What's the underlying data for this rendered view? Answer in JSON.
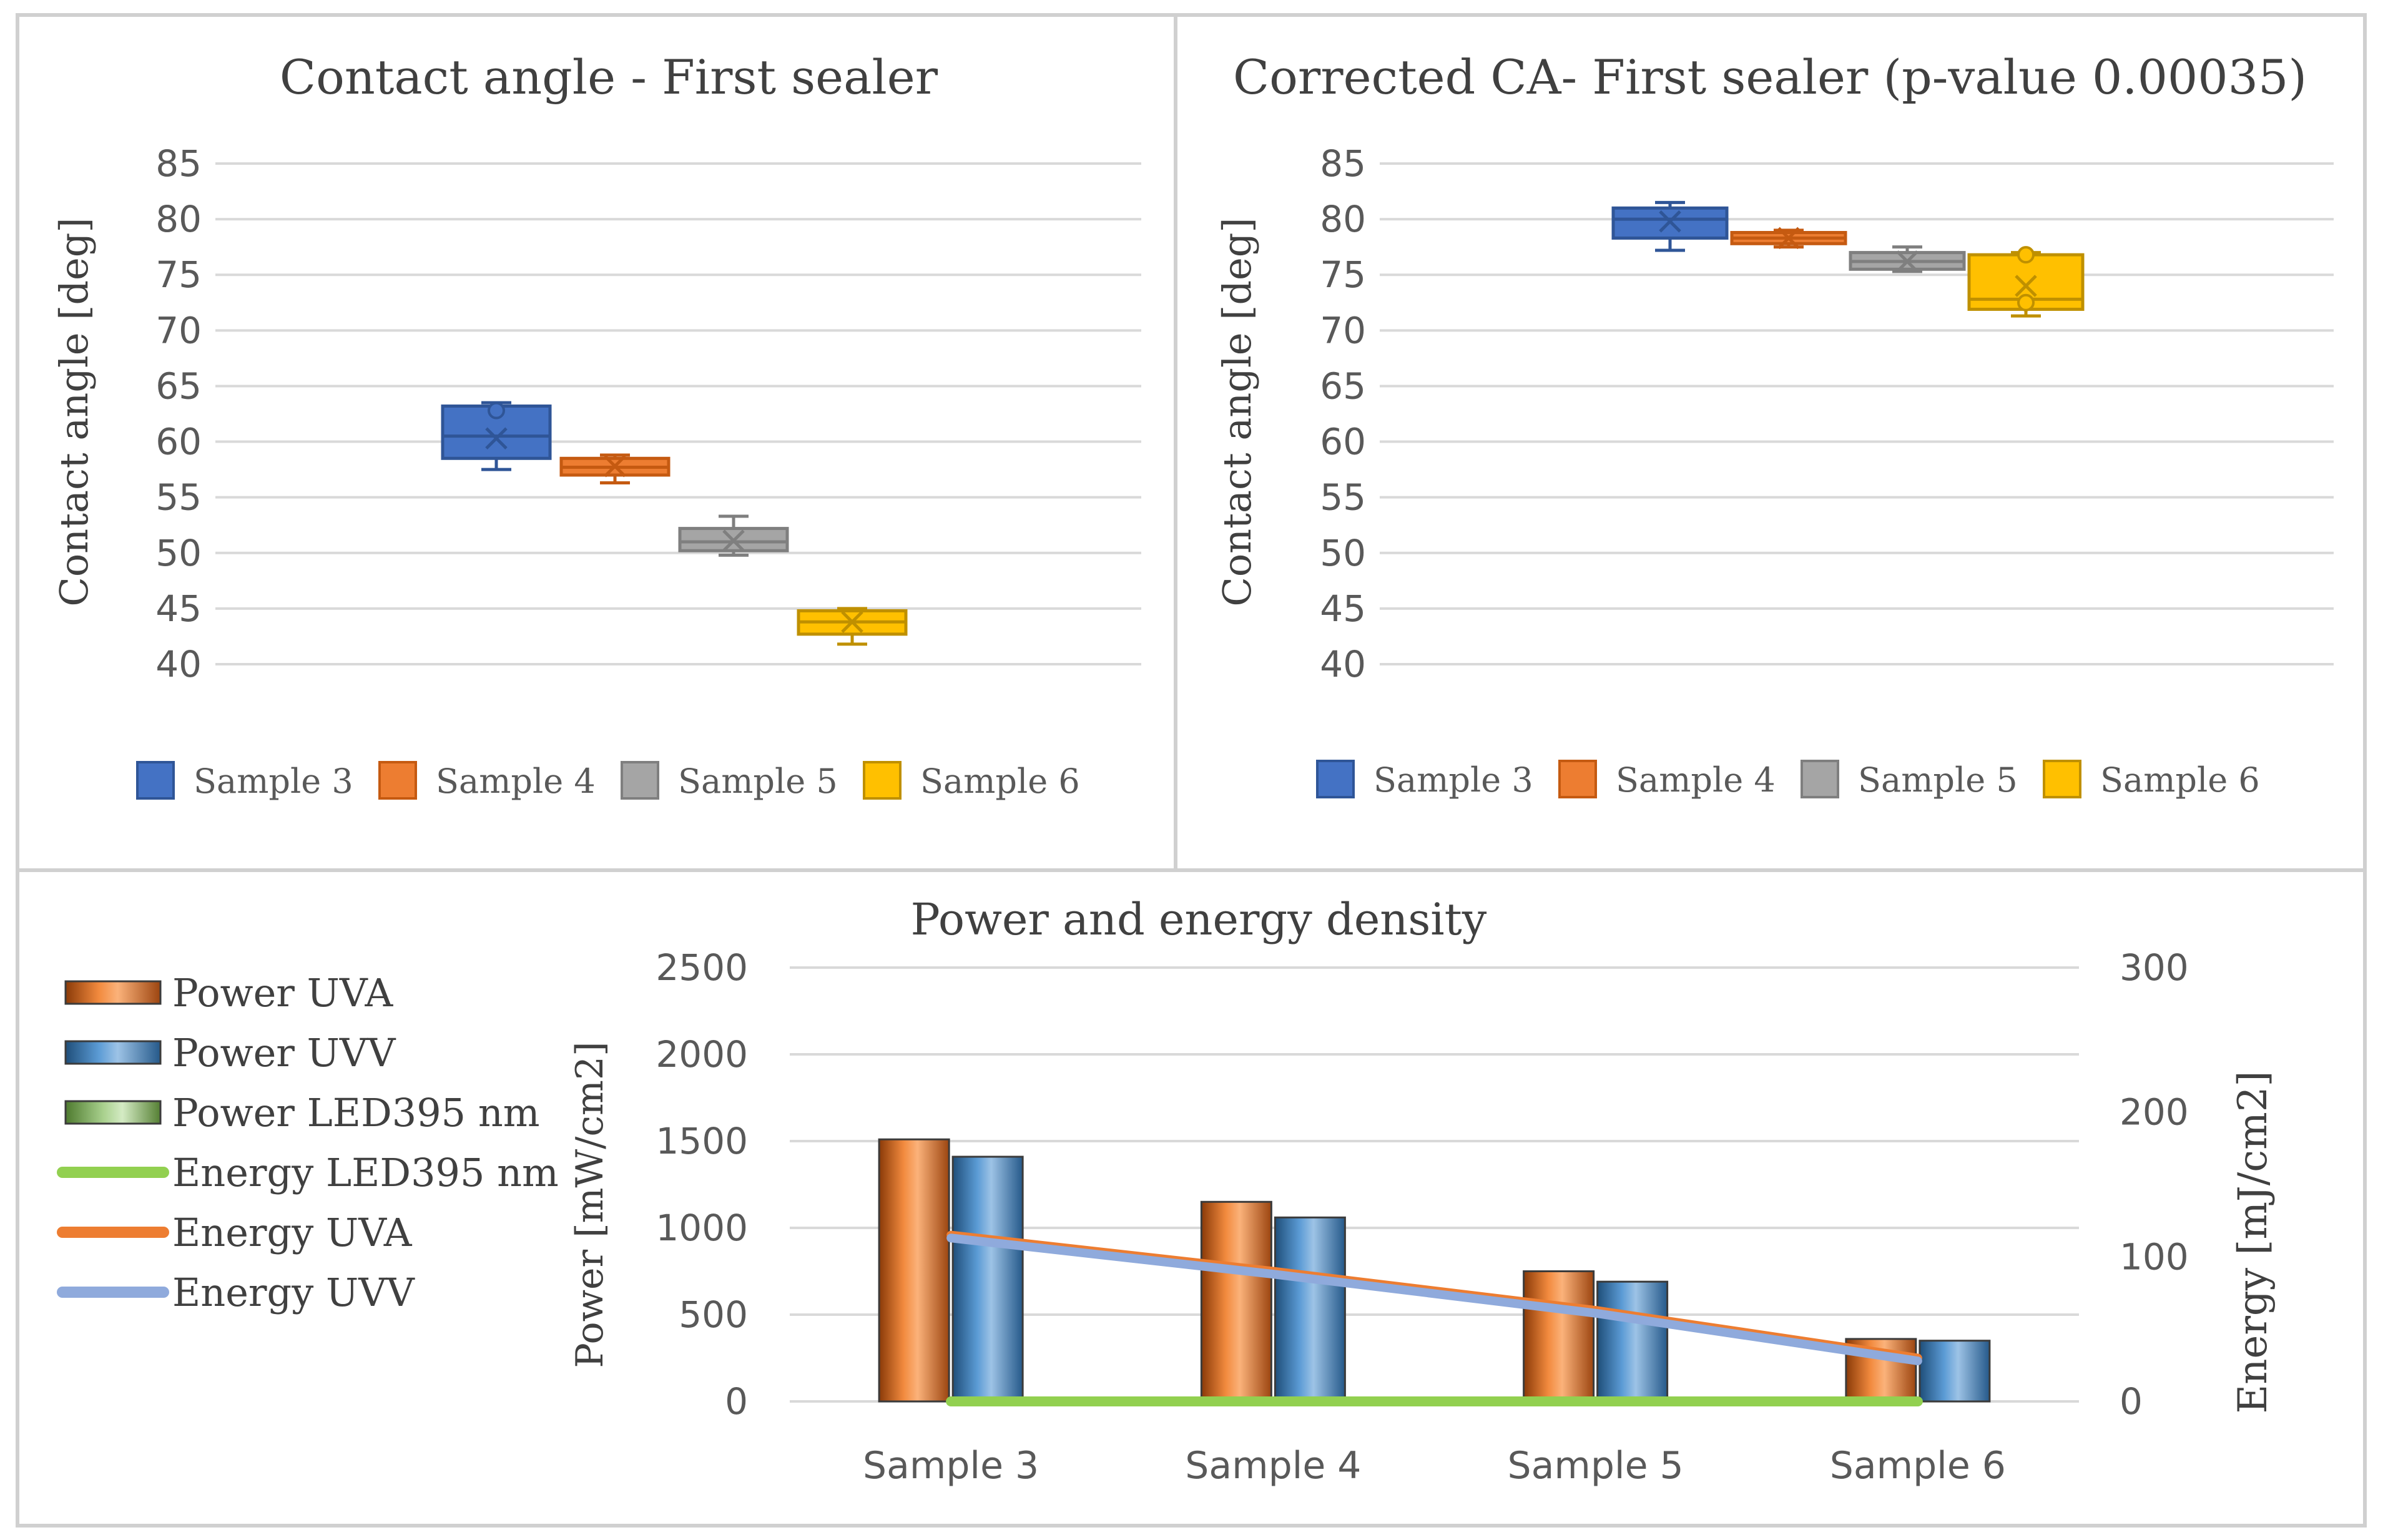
{
  "chart_data": [
    {
      "id": "ca",
      "type": "box",
      "title": "Contact angle - First sealer",
      "ylabel": "Contact angle [deg]",
      "ylim": [
        40,
        85
      ],
      "yticks": [
        40,
        45,
        50,
        55,
        60,
        65,
        70,
        75,
        80,
        85
      ],
      "series": [
        {
          "name": "Sample 3",
          "color": "#4472C4",
          "stroke": "#2F5597",
          "min": 57.5,
          "q1": 58.5,
          "median": 60.5,
          "q3": 63.2,
          "max": 63.5,
          "mean": 60.3,
          "outliers": [
            62.8
          ]
        },
        {
          "name": "Sample 4",
          "color": "#ED7D31",
          "stroke": "#C55A11",
          "min": 56.3,
          "q1": 57.0,
          "median": 57.7,
          "q3": 58.5,
          "max": 58.8,
          "mean": 57.8,
          "outliers": []
        },
        {
          "name": "Sample 5",
          "color": "#A5A5A5",
          "stroke": "#7F7F7F",
          "min": 49.8,
          "q1": 50.2,
          "median": 51.0,
          "q3": 52.2,
          "max": 53.3,
          "mean": 51.1,
          "outliers": []
        },
        {
          "name": "Sample 6",
          "color": "#FFC000",
          "stroke": "#BF9000",
          "min": 41.8,
          "q1": 42.7,
          "median": 43.8,
          "q3": 44.8,
          "max": 45.0,
          "mean": 43.8,
          "outliers": []
        }
      ]
    },
    {
      "id": "cca",
      "type": "box",
      "title": "Corrected CA- First sealer (p-value 0.00035)",
      "ylabel": "Contact angle [deg]",
      "ylim": [
        40,
        85
      ],
      "yticks": [
        40,
        45,
        50,
        55,
        60,
        65,
        70,
        75,
        80,
        85
      ],
      "series": [
        {
          "name": "Sample 3",
          "color": "#4472C4",
          "stroke": "#2F5597",
          "min": 77.2,
          "q1": 78.3,
          "median": 80.0,
          "q3": 81.0,
          "max": 81.5,
          "mean": 79.8,
          "outliers": []
        },
        {
          "name": "Sample 4",
          "color": "#ED7D31",
          "stroke": "#C55A11",
          "min": 77.5,
          "q1": 77.8,
          "median": 78.3,
          "q3": 78.8,
          "max": 79.0,
          "mean": 78.3,
          "outliers": []
        },
        {
          "name": "Sample 5",
          "color": "#A5A5A5",
          "stroke": "#7F7F7F",
          "min": 75.3,
          "q1": 75.5,
          "median": 76.2,
          "q3": 77.0,
          "max": 77.5,
          "mean": 76.2,
          "outliers": []
        },
        {
          "name": "Sample 6",
          "color": "#FFC000",
          "stroke": "#BF9000",
          "min": 71.3,
          "q1": 71.9,
          "median": 72.8,
          "q3": 76.8,
          "max": 77.0,
          "mean": 74.0,
          "outliers": [
            76.8,
            72.5
          ]
        }
      ]
    },
    {
      "id": "power",
      "type": "bar",
      "title": "Power and energy density",
      "ylabel": "Power [mW/cm2]",
      "y2label": "Energy [mJ/cm2]",
      "ylim": [
        0,
        2500
      ],
      "yticks": [
        0,
        500,
        1000,
        1500,
        2000,
        2500
      ],
      "y2lim": [
        0,
        300
      ],
      "y2ticks": [
        0,
        100,
        200,
        300
      ],
      "categories": [
        "Sample 3",
        "Sample 4",
        "Sample 5",
        "Sample 6"
      ],
      "bars": [
        {
          "name": "Power UVA",
          "color": "#ED7D31",
          "values": [
            1510,
            1150,
            750,
            360
          ]
        },
        {
          "name": "Power UVV",
          "color": "#5B9BD5",
          "values": [
            1410,
            1060,
            690,
            350
          ]
        },
        {
          "name": "Power LED395 nm",
          "color": "#A9D18E",
          "values": [
            0,
            0,
            0,
            0
          ]
        }
      ],
      "lines": [
        {
          "name": "Energy LED395 nm",
          "color": "#92D050",
          "values": [
            0,
            0,
            0,
            0
          ]
        },
        {
          "name": "Energy UVA",
          "color": "#ED7D31",
          "values": [
            115,
            90,
            63,
            30
          ]
        },
        {
          "name": "Energy UVV",
          "color": "#8FAADC",
          "values": [
            113,
            88,
            61,
            28
          ]
        }
      ],
      "legend": [
        "Power UVA",
        "Power UVV",
        "Power LED395 nm",
        "Energy LED395 nm",
        "Energy UVA",
        "Energy UVV"
      ]
    }
  ]
}
